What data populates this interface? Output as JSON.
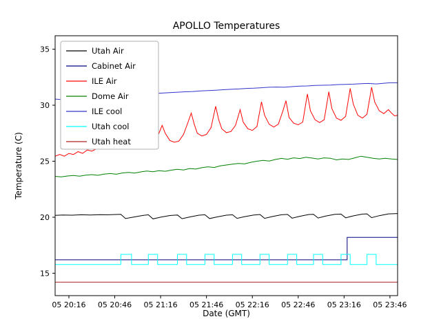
{
  "chart_data": {
    "type": "line",
    "title": "APOLLO Temperatures",
    "xlabel": "Date (GMT)",
    "ylabel": "Temperature (C)",
    "x_unit": "minutes after 05 20:00 GMT",
    "xlim": [
      7,
      231
    ],
    "ylim": [
      13.0,
      36.2
    ],
    "y_ticks": [
      15,
      20,
      25,
      30,
      35
    ],
    "x_ticks": [
      {
        "value": 16,
        "label": "05 20:16"
      },
      {
        "value": 46,
        "label": "05 20:46"
      },
      {
        "value": 76,
        "label": "05 21:16"
      },
      {
        "value": 106,
        "label": "05 21:46"
      },
      {
        "value": 136,
        "label": "05 22:16"
      },
      {
        "value": 166,
        "label": "05 22:46"
      },
      {
        "value": 196,
        "label": "05 23:16"
      },
      {
        "value": 226,
        "label": "05 23:46"
      }
    ],
    "grid": false,
    "legend_position": "upper left",
    "background": "#ffffff",
    "series": [
      {
        "name": "Utah Air",
        "color": "#000000",
        "points": [
          [
            7,
            20.17
          ],
          [
            12,
            20.2
          ],
          [
            18,
            20.18
          ],
          [
            24,
            20.22
          ],
          [
            30,
            20.2
          ],
          [
            36,
            20.23
          ],
          [
            42,
            20.22
          ],
          [
            48,
            20.25
          ],
          [
            50,
            20.26
          ],
          [
            53,
            19.88
          ],
          [
            58,
            20.0
          ],
          [
            64,
            20.15
          ],
          [
            68,
            20.22
          ],
          [
            71,
            19.85
          ],
          [
            76,
            20.0
          ],
          [
            82,
            20.15
          ],
          [
            87,
            20.2
          ],
          [
            90,
            19.87
          ],
          [
            95,
            20.02
          ],
          [
            101,
            20.18
          ],
          [
            105,
            20.22
          ],
          [
            108,
            19.88
          ],
          [
            113,
            20.03
          ],
          [
            119,
            20.18
          ],
          [
            123,
            20.22
          ],
          [
            126,
            19.9
          ],
          [
            131,
            20.05
          ],
          [
            137,
            20.2
          ],
          [
            141,
            20.24
          ],
          [
            144,
            19.9
          ],
          [
            149,
            20.06
          ],
          [
            155,
            20.22
          ],
          [
            159,
            20.25
          ],
          [
            162,
            19.92
          ],
          [
            167,
            20.08
          ],
          [
            173,
            20.24
          ],
          [
            176,
            20.26
          ],
          [
            179,
            19.93
          ],
          [
            184,
            20.1
          ],
          [
            190,
            20.26
          ],
          [
            194,
            20.28
          ],
          [
            197,
            19.95
          ],
          [
            202,
            20.12
          ],
          [
            208,
            20.28
          ],
          [
            211,
            20.3
          ],
          [
            214,
            19.96
          ],
          [
            219,
            20.14
          ],
          [
            225,
            20.3
          ],
          [
            231,
            20.33
          ]
        ]
      },
      {
        "name": "Cabinet Air",
        "color": "#000080",
        "points": [
          [
            7,
            16.2
          ],
          [
            198,
            16.2
          ],
          [
            198,
            18.2
          ],
          [
            231,
            18.2
          ]
        ]
      },
      {
        "name": "ILE Air",
        "color": "#ff0000",
        "points": [
          [
            7,
            25.45
          ],
          [
            10,
            25.6
          ],
          [
            13,
            25.45
          ],
          [
            16,
            25.7
          ],
          [
            19,
            25.6
          ],
          [
            22,
            25.85
          ],
          [
            25,
            25.7
          ],
          [
            28,
            26.0
          ],
          [
            31,
            25.9
          ],
          [
            34,
            26.1
          ],
          [
            37,
            26.3
          ],
          [
            40,
            26.45
          ],
          [
            43,
            26.35
          ],
          [
            46,
            26.55
          ],
          [
            49,
            27.3
          ],
          [
            52,
            28.5
          ],
          [
            55,
            29.4
          ],
          [
            57,
            28.1
          ],
          [
            59,
            27.1
          ],
          [
            62,
            26.7
          ],
          [
            65,
            26.55
          ],
          [
            68,
            26.7
          ],
          [
            71,
            26.6
          ],
          [
            74,
            27.2
          ],
          [
            77,
            28.2
          ],
          [
            79,
            27.5
          ],
          [
            82,
            26.85
          ],
          [
            85,
            26.7
          ],
          [
            88,
            26.8
          ],
          [
            91,
            27.4
          ],
          [
            94,
            28.5
          ],
          [
            96,
            29.3
          ],
          [
            98,
            28.3
          ],
          [
            100,
            27.5
          ],
          [
            103,
            27.25
          ],
          [
            106,
            27.4
          ],
          [
            109,
            28.0
          ],
          [
            112,
            29.9
          ],
          [
            114,
            28.7
          ],
          [
            116,
            27.9
          ],
          [
            119,
            27.55
          ],
          [
            122,
            27.65
          ],
          [
            125,
            28.2
          ],
          [
            128,
            29.6
          ],
          [
            130,
            28.5
          ],
          [
            133,
            27.9
          ],
          [
            136,
            27.75
          ],
          [
            139,
            28.1
          ],
          [
            142,
            30.3
          ],
          [
            144,
            29.1
          ],
          [
            147,
            28.3
          ],
          [
            150,
            28.05
          ],
          [
            153,
            28.3
          ],
          [
            156,
            29.5
          ],
          [
            158,
            30.4
          ],
          [
            160,
            28.9
          ],
          [
            163,
            28.4
          ],
          [
            166,
            28.25
          ],
          [
            169,
            28.5
          ],
          [
            172,
            31.0
          ],
          [
            174,
            29.5
          ],
          [
            177,
            28.7
          ],
          [
            180,
            28.45
          ],
          [
            183,
            28.7
          ],
          [
            186,
            31.2
          ],
          [
            188,
            29.7
          ],
          [
            191,
            28.85
          ],
          [
            194,
            28.65
          ],
          [
            197,
            29.0
          ],
          [
            200,
            31.5
          ],
          [
            202,
            30.1
          ],
          [
            205,
            29.1
          ],
          [
            208,
            28.85
          ],
          [
            211,
            29.2
          ],
          [
            214,
            31.6
          ],
          [
            216,
            30.3
          ],
          [
            219,
            29.5
          ],
          [
            222,
            29.25
          ],
          [
            225,
            29.6
          ],
          [
            227,
            29.3
          ],
          [
            229,
            29.05
          ],
          [
            231,
            29.1
          ]
        ]
      },
      {
        "name": "Dome Air",
        "color": "#008000",
        "points": [
          [
            7,
            23.65
          ],
          [
            11,
            23.6
          ],
          [
            15,
            23.68
          ],
          [
            19,
            23.72
          ],
          [
            23,
            23.66
          ],
          [
            27,
            23.75
          ],
          [
            31,
            23.8
          ],
          [
            35,
            23.74
          ],
          [
            39,
            23.85
          ],
          [
            43,
            23.9
          ],
          [
            47,
            23.84
          ],
          [
            51,
            23.95
          ],
          [
            55,
            24.0
          ],
          [
            59,
            23.94
          ],
          [
            63,
            24.05
          ],
          [
            67,
            24.12
          ],
          [
            71,
            24.06
          ],
          [
            75,
            24.15
          ],
          [
            79,
            24.1
          ],
          [
            83,
            24.2
          ],
          [
            87,
            24.28
          ],
          [
            91,
            24.22
          ],
          [
            95,
            24.35
          ],
          [
            99,
            24.3
          ],
          [
            103,
            24.42
          ],
          [
            107,
            24.5
          ],
          [
            111,
            24.44
          ],
          [
            115,
            24.58
          ],
          [
            119,
            24.66
          ],
          [
            123,
            24.74
          ],
          [
            127,
            24.8
          ],
          [
            131,
            24.76
          ],
          [
            135,
            24.9
          ],
          [
            139,
            25.0
          ],
          [
            143,
            25.08
          ],
          [
            147,
            25.02
          ],
          [
            151,
            25.15
          ],
          [
            155,
            25.25
          ],
          [
            159,
            25.18
          ],
          [
            163,
            25.3
          ],
          [
            167,
            25.24
          ],
          [
            171,
            25.35
          ],
          [
            175,
            25.28
          ],
          [
            179,
            25.2
          ],
          [
            183,
            25.3
          ],
          [
            187,
            25.26
          ],
          [
            191,
            25.12
          ],
          [
            195,
            25.2
          ],
          [
            199,
            25.16
          ],
          [
            203,
            25.3
          ],
          [
            207,
            25.45
          ],
          [
            211,
            25.35
          ],
          [
            215,
            25.26
          ],
          [
            219,
            25.2
          ],
          [
            223,
            25.26
          ],
          [
            227,
            25.2
          ],
          [
            231,
            25.16
          ]
        ]
      },
      {
        "name": "ILE cool",
        "color": "#3333cc",
        "points": [
          [
            7,
            30.55
          ],
          [
            12,
            30.5
          ],
          [
            17,
            30.45
          ],
          [
            22,
            30.42
          ],
          [
            27,
            30.45
          ],
          [
            32,
            30.52
          ],
          [
            37,
            30.6
          ],
          [
            42,
            30.68
          ],
          [
            47,
            30.75
          ],
          [
            52,
            30.82
          ],
          [
            57,
            30.9
          ],
          [
            62,
            30.96
          ],
          [
            67,
            31.0
          ],
          [
            72,
            31.05
          ],
          [
            77,
            31.08
          ],
          [
            82,
            31.12
          ],
          [
            87,
            31.16
          ],
          [
            92,
            31.2
          ],
          [
            97,
            31.22
          ],
          [
            102,
            31.28
          ],
          [
            107,
            31.3
          ],
          [
            112,
            31.34
          ],
          [
            117,
            31.38
          ],
          [
            122,
            31.42
          ],
          [
            127,
            31.45
          ],
          [
            132,
            31.5
          ],
          [
            137,
            31.52
          ],
          [
            142,
            31.56
          ],
          [
            147,
            31.6
          ],
          [
            152,
            31.62
          ],
          [
            157,
            31.6
          ],
          [
            162,
            31.66
          ],
          [
            167,
            31.7
          ],
          [
            172,
            31.72
          ],
          [
            177,
            31.76
          ],
          [
            182,
            31.78
          ],
          [
            187,
            31.8
          ],
          [
            192,
            31.84
          ],
          [
            197,
            31.86
          ],
          [
            202,
            31.88
          ],
          [
            207,
            31.92
          ],
          [
            212,
            31.94
          ],
          [
            217,
            31.9
          ],
          [
            222,
            31.96
          ],
          [
            226,
            32.0
          ],
          [
            231,
            32.0
          ]
        ]
      },
      {
        "name": "Utah cool",
        "color": "#00ffff",
        "points": [
          [
            7,
            15.78
          ],
          [
            50,
            15.78
          ],
          [
            50,
            16.68
          ],
          [
            57,
            16.68
          ],
          [
            57,
            15.78
          ],
          [
            68,
            15.78
          ],
          [
            68,
            16.68
          ],
          [
            74,
            16.68
          ],
          [
            74,
            15.78
          ],
          [
            87,
            15.78
          ],
          [
            87,
            16.68
          ],
          [
            93,
            16.68
          ],
          [
            93,
            15.78
          ],
          [
            105,
            15.78
          ],
          [
            105,
            16.68
          ],
          [
            111,
            16.68
          ],
          [
            111,
            15.78
          ],
          [
            123,
            15.78
          ],
          [
            123,
            16.68
          ],
          [
            129,
            16.68
          ],
          [
            129,
            15.78
          ],
          [
            141,
            15.78
          ],
          [
            141,
            16.68
          ],
          [
            147,
            16.68
          ],
          [
            147,
            15.78
          ],
          [
            159,
            15.78
          ],
          [
            159,
            16.68
          ],
          [
            165,
            16.68
          ],
          [
            165,
            15.78
          ],
          [
            176,
            15.78
          ],
          [
            176,
            16.68
          ],
          [
            182,
            16.68
          ],
          [
            182,
            15.78
          ],
          [
            194,
            15.78
          ],
          [
            194,
            16.68
          ],
          [
            200,
            16.68
          ],
          [
            200,
            15.78
          ],
          [
            211,
            15.78
          ],
          [
            211,
            16.68
          ],
          [
            217,
            16.68
          ],
          [
            217,
            15.78
          ],
          [
            231,
            15.78
          ]
        ]
      },
      {
        "name": "Utah heat",
        "color": "#b22222",
        "points": [
          [
            7,
            14.2
          ],
          [
            231,
            14.2
          ]
        ]
      }
    ]
  }
}
